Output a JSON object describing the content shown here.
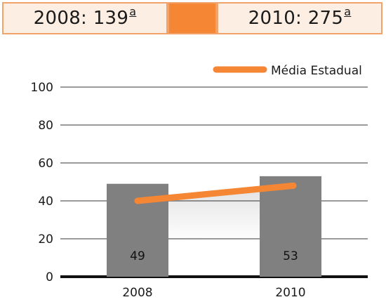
{
  "header": {
    "left_year": "2008:",
    "left_rank": "139",
    "left_suffix": "a",
    "right_year": "2010:",
    "right_rank": "275",
    "right_suffix": "a"
  },
  "colors": {
    "accent": "#f58634",
    "box_fill": "#fdeee3",
    "box_border": "#f0a36a",
    "bar": "#808080",
    "grid": "#9a9a9a",
    "axis": "#111111"
  },
  "chart_data": {
    "type": "bar",
    "categories": [
      "2008",
      "2010"
    ],
    "series": [
      {
        "values": [
          49,
          53
        ],
        "data_labels": [
          "49",
          "53"
        ]
      },
      {
        "name": "Média Estadual",
        "type": "line",
        "values": [
          40,
          48
        ]
      }
    ],
    "ylim": [
      0,
      100
    ],
    "yticks": [
      "0",
      "20",
      "40",
      "60",
      "80",
      "100"
    ],
    "grid": true,
    "legend": "top-right"
  }
}
